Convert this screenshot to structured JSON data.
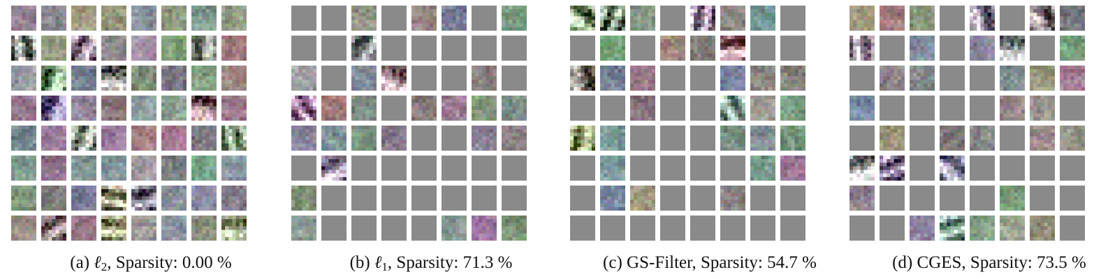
{
  "panels": [
    {
      "id": "a",
      "prefix": "(a)",
      "symbol": "ℓ",
      "subscript": "2",
      "label_suffix": ", Sparsity: 0.00 %",
      "sparsity_percent": 0.0,
      "mask": [
        "11111111",
        "11111111",
        "11111111",
        "11111111",
        "11111111",
        "11111111",
        "11111111",
        "11111111"
      ]
    },
    {
      "id": "b",
      "prefix": "(b)",
      "symbol": "ℓ",
      "subscript": "1",
      "label_suffix": ", Sparsity: 71.3 %",
      "sparsity_percent": 71.3,
      "mask": [
        "00101101",
        "00100000",
        "10110010",
        "11101111",
        "11110011",
        "01000000",
        "10000000",
        "10000111"
      ]
    },
    {
      "id": "c",
      "prefix": "(c)",
      "symbol": "",
      "subscript": "",
      "label_suffix": "GS-Filter, Sparsity: 54.7 %",
      "sparsity_percent": 54.7,
      "mask": [
        "11101110",
        "01011100",
        "11100111",
        "00100111",
        "11000111",
        "01000011",
        "01100100",
        "00000000"
      ]
    },
    {
      "id": "d",
      "prefix": "(d)",
      "symbol": "",
      "subscript": "",
      "label_suffix": "CGES, Sparsity: 73.5 %",
      "sparsity_percent": 73.5,
      "mask": [
        "11101011",
        "10101101",
        "01100111",
        "10000110",
        "01011011",
        "11010000",
        "10000100",
        "00111110"
      ]
    }
  ]
}
